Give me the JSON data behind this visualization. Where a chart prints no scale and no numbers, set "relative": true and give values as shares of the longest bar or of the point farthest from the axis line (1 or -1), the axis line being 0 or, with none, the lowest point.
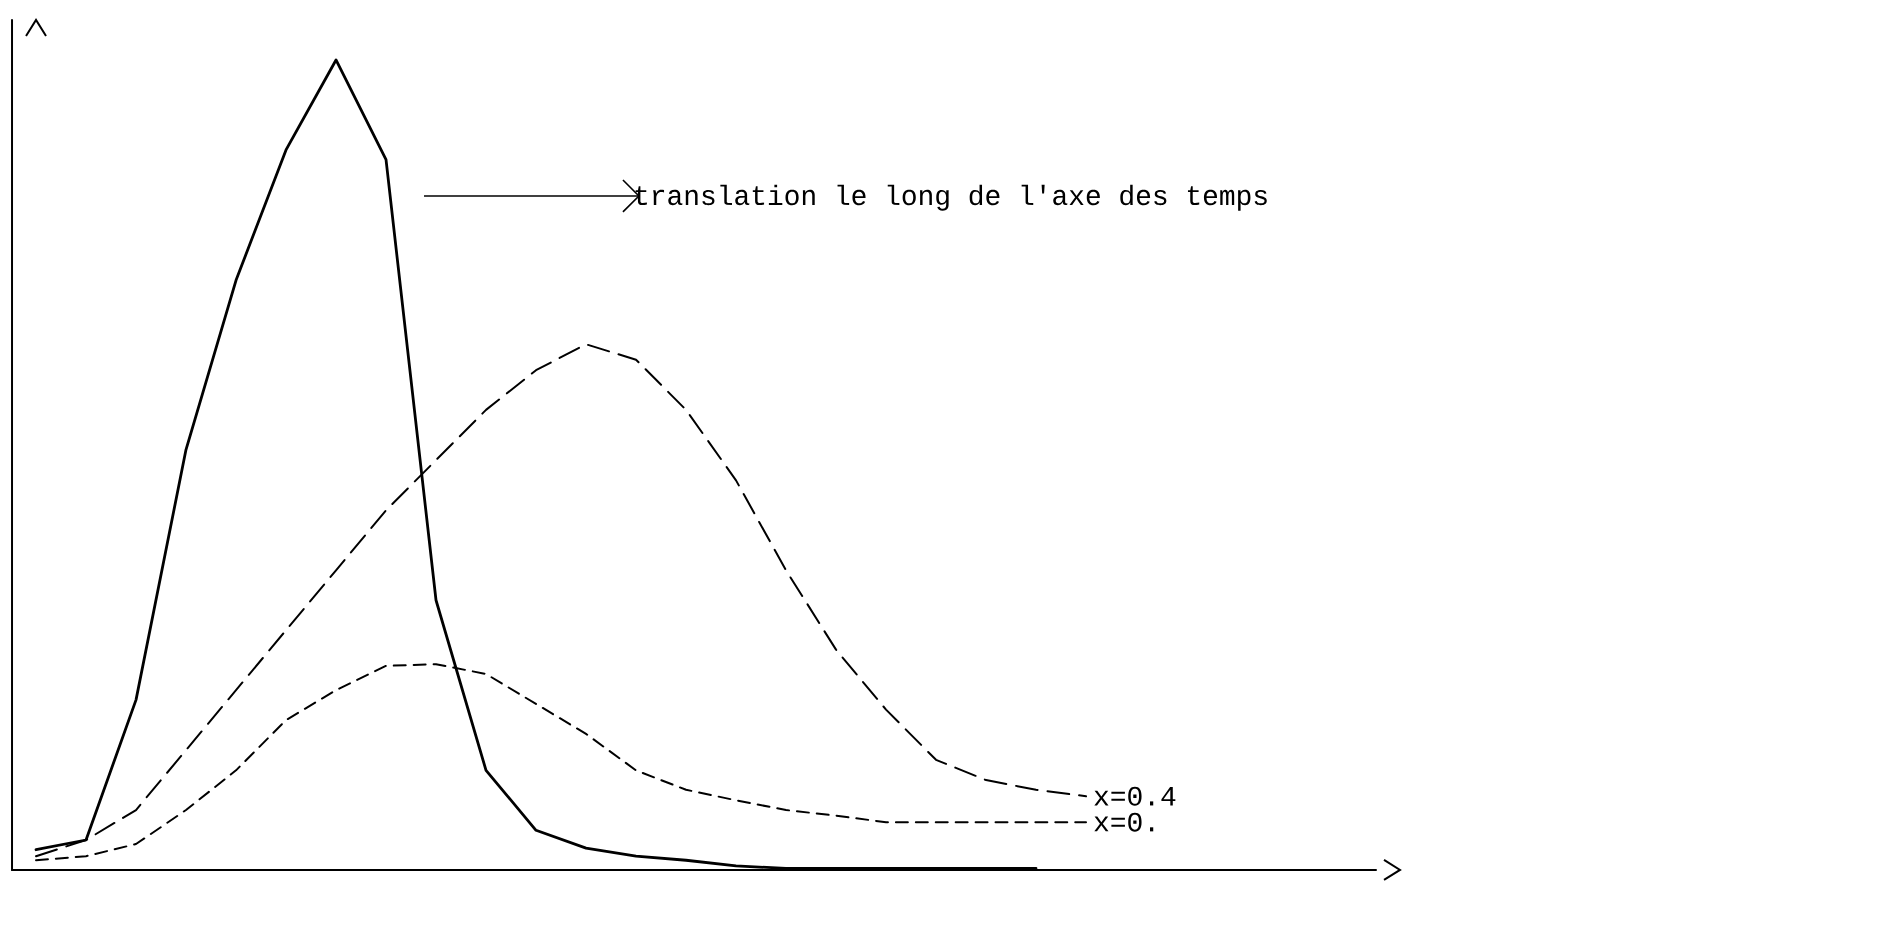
{
  "chart_data": {
    "type": "line",
    "relative": true,
    "categories": [
      null,
      null,
      null,
      null,
      null,
      null,
      null,
      null,
      null,
      null,
      null,
      null,
      null,
      null,
      null,
      null,
      null,
      null,
      null,
      null,
      null,
      null
    ],
    "annotations": [
      "translation le long de l'axe des temps"
    ],
    "series": [
      {
        "color": "#000000",
        "line_style": "solid",
        "values": [
          0.025,
          0.037,
          0.21,
          0.519,
          0.728,
          0.889,
          1,
          0.877,
          0.333,
          0.123,
          0.049,
          0.027,
          0.017,
          0.012,
          0.005,
          0.002,
          0.002,
          0.002,
          0.002,
          0.002,
          0.002,
          null
        ]
      },
      {
        "name": "x=0.4",
        "color": "#000000",
        "line_style": "dashed",
        "values": [
          0.017,
          0.037,
          0.074,
          0.148,
          0.222,
          0.296,
          0.37,
          0.444,
          0.506,
          0.568,
          0.617,
          0.649,
          0.63,
          0.568,
          0.481,
          0.37,
          0.272,
          0.198,
          0.136,
          0.111,
          0.099,
          0.091
        ]
      },
      {
        "name": "x=0.",
        "color": "#000000",
        "line_style": "dashed",
        "values": [
          0.012,
          0.017,
          0.032,
          0.074,
          0.123,
          0.185,
          0.222,
          0.252,
          0.254,
          0.242,
          0.205,
          0.168,
          0.123,
          0.099,
          0.086,
          0.074,
          0.067,
          0.059,
          0.059,
          0.059,
          0.059,
          0.059
        ]
      }
    ]
  }
}
